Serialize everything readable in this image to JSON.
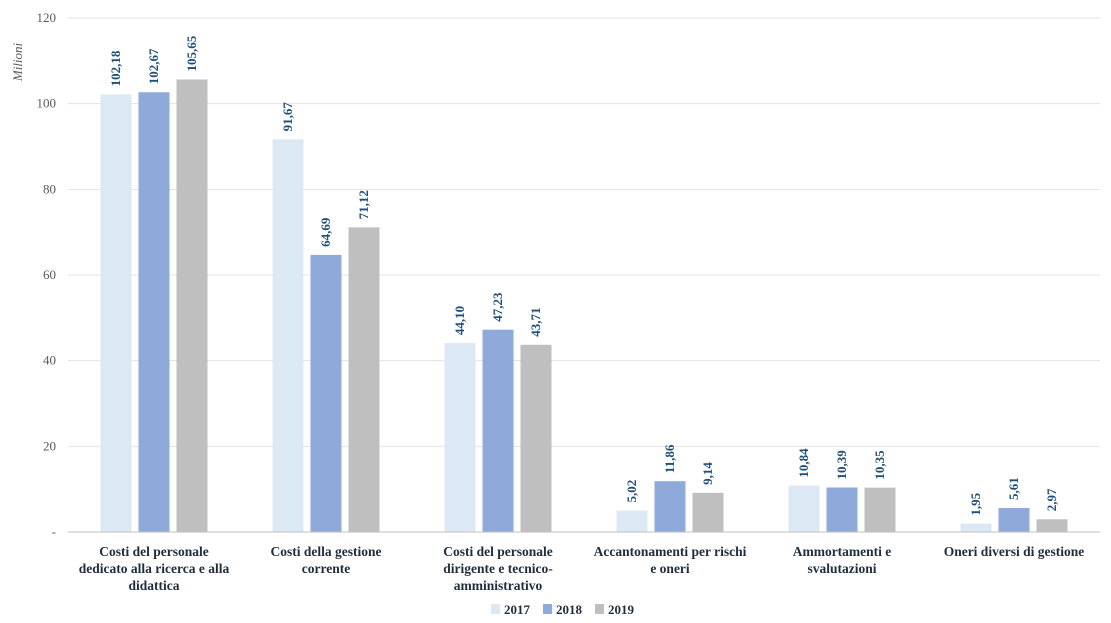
{
  "chart_data": {
    "type": "bar",
    "ylabel": "Milioni",
    "ylim": [
      0,
      120
    ],
    "yticks": [
      {
        "value": 0,
        "label": "-"
      },
      {
        "value": 20,
        "label": "20"
      },
      {
        "value": 40,
        "label": "40"
      },
      {
        "value": 60,
        "label": "60"
      },
      {
        "value": 80,
        "label": "80"
      },
      {
        "value": 100,
        "label": "100"
      },
      {
        "value": 120,
        "label": "120"
      }
    ],
    "grid": true,
    "legend": "bottom",
    "categories": [
      [
        "Costi del personale",
        "dedicato alla ricerca e alla",
        "didattica"
      ],
      [
        "Costi della gestione",
        "corrente"
      ],
      [
        "Costi del personale",
        "dirigente e tecnico-",
        "amministrativo"
      ],
      [
        "Accantonamenti per rischi",
        "e oneri"
      ],
      [
        "Ammortamenti e",
        "svalutazioni"
      ],
      [
        "Oneri diversi di gestione"
      ]
    ],
    "series": [
      {
        "name": "2017",
        "color": "#dde8f5",
        "values": [
          102.18,
          91.67,
          44.1,
          5.02,
          10.84,
          1.95
        ],
        "labels": [
          "102,18",
          "91,67",
          "44,10",
          "5,02",
          "10,84",
          "1,95"
        ]
      },
      {
        "name": "2018",
        "color": "#8eaadb",
        "values": [
          102.67,
          64.69,
          47.23,
          11.86,
          10.39,
          5.61
        ],
        "labels": [
          "102,67",
          "64,69",
          "47,23",
          "11,86",
          "10,39",
          "5,61"
        ]
      },
      {
        "name": "2019",
        "color": "#bfbfbf",
        "values": [
          105.65,
          71.12,
          43.71,
          9.14,
          10.35,
          2.97
        ],
        "labels": [
          "105,65",
          "71,12",
          "43,71",
          "9,14",
          "10,35",
          "2,97"
        ]
      }
    ]
  }
}
